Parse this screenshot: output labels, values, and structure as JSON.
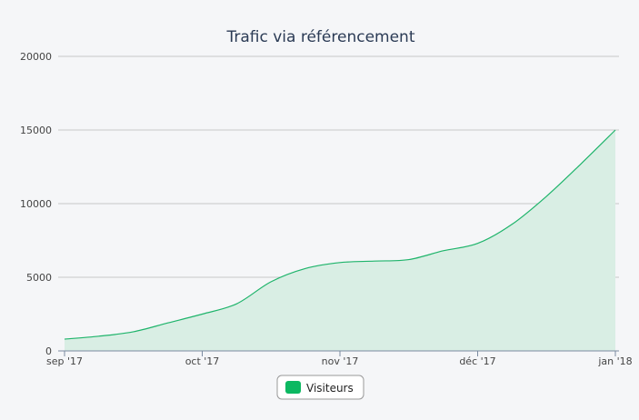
{
  "chart_data": {
    "type": "area",
    "title": "Trafic via référencement",
    "x": [
      "sep '17",
      "oct '17",
      "nov '17",
      "déc '17",
      "jan '18"
    ],
    "xlabel": "",
    "ylabel": "",
    "ylim": [
      0,
      20000
    ],
    "yticks": [
      "0",
      "5000",
      "10000",
      "15000",
      "20000"
    ],
    "series": [
      {
        "name": "Visiteurs",
        "x": [
          0,
          0.25,
          0.5,
          0.75,
          1,
          1.25,
          1.5,
          1.75,
          2,
          2.25,
          2.5,
          2.75,
          3,
          3.25,
          3.5,
          3.75,
          4
        ],
        "values": [
          800,
          1000,
          1300,
          1900,
          2500,
          3200,
          4700,
          5600,
          6000,
          6100,
          6200,
          6800,
          7300,
          8600,
          10500,
          12700,
          15000
        ]
      }
    ],
    "colors": {
      "line": "#1fb46b",
      "fill": "#d9eee4",
      "legend": "#0cb861",
      "grid": "#c8c8c8"
    },
    "legend": {
      "position": "bottom-center"
    },
    "grid": true
  }
}
